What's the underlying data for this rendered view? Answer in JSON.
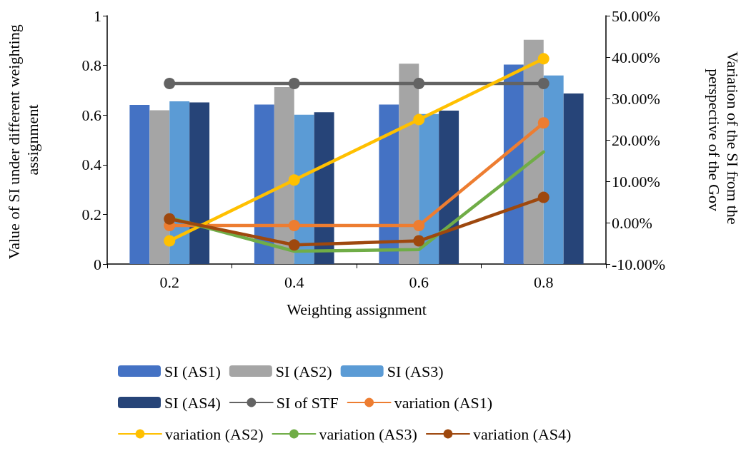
{
  "chart_data": {
    "type": "bar",
    "xlabel": "Weighting assignment",
    "ylabel": "Value of SI under different weighting assignment",
    "y2label": "Variation of the SI from the perspective of the Gov",
    "categories": [
      "0.2",
      "0.4",
      "0.6",
      "0.8"
    ],
    "series": [
      {
        "name": "SI (AS1)",
        "color": "#4472c4",
        "values": [
          0.641,
          0.642,
          0.642,
          0.803
        ]
      },
      {
        "name": "SI (AS2)",
        "color": "#a5a5a5",
        "values": [
          0.619,
          0.713,
          0.807,
          0.903
        ]
      },
      {
        "name": "SI (AS3)",
        "color": "#5b9bd5",
        "values": [
          0.655,
          0.601,
          0.604,
          0.759
        ]
      },
      {
        "name": "SI (AS4)",
        "color": "#264478",
        "values": [
          0.651,
          0.611,
          0.618,
          0.687
        ]
      },
      {
        "name": "SI of STF",
        "type": "line",
        "color": "#636363",
        "marker": "circle",
        "values": [
          0.727,
          0.727,
          0.727,
          0.727
        ]
      },
      {
        "name": "variation (AS1)",
        "type": "line",
        "axis": "y2",
        "color": "#ed7d31",
        "marker": "circle",
        "values": [
          -0.7,
          -0.7,
          -0.7,
          24.1
        ]
      },
      {
        "name": "variation (AS2)",
        "type": "line",
        "axis": "y2",
        "color": "#ffc000",
        "marker": "circle",
        "values": [
          -4.4,
          10.3,
          24.9,
          39.6
        ]
      },
      {
        "name": "variation (AS3)",
        "type": "line",
        "axis": "y2",
        "color": "#70ad47",
        "marker": "none",
        "values": [
          1.2,
          -6.9,
          -6.5,
          17.1
        ]
      },
      {
        "name": "variation (AS4)",
        "type": "line",
        "axis": "y2",
        "color": "#9e480e",
        "marker": "circle",
        "values": [
          0.9,
          -5.4,
          -4.4,
          6.1
        ]
      }
    ],
    "ylim": [
      0,
      1
    ],
    "yticks": [
      0,
      0.2,
      0.4,
      0.6,
      0.8,
      1
    ],
    "y2lim": [
      -10,
      50
    ],
    "y2ticks": [
      {
        "value": -10,
        "label": "-10.00%"
      },
      {
        "value": 0,
        "label": "0.00%"
      },
      {
        "value": 10,
        "label": "10.00%"
      },
      {
        "value": 20,
        "label": "20.00%"
      },
      {
        "value": 30,
        "label": "30.00%"
      },
      {
        "value": 40,
        "label": "40.00%"
      },
      {
        "value": 50,
        "label": "50.00%"
      }
    ],
    "grid": false,
    "legend": "bottom"
  }
}
